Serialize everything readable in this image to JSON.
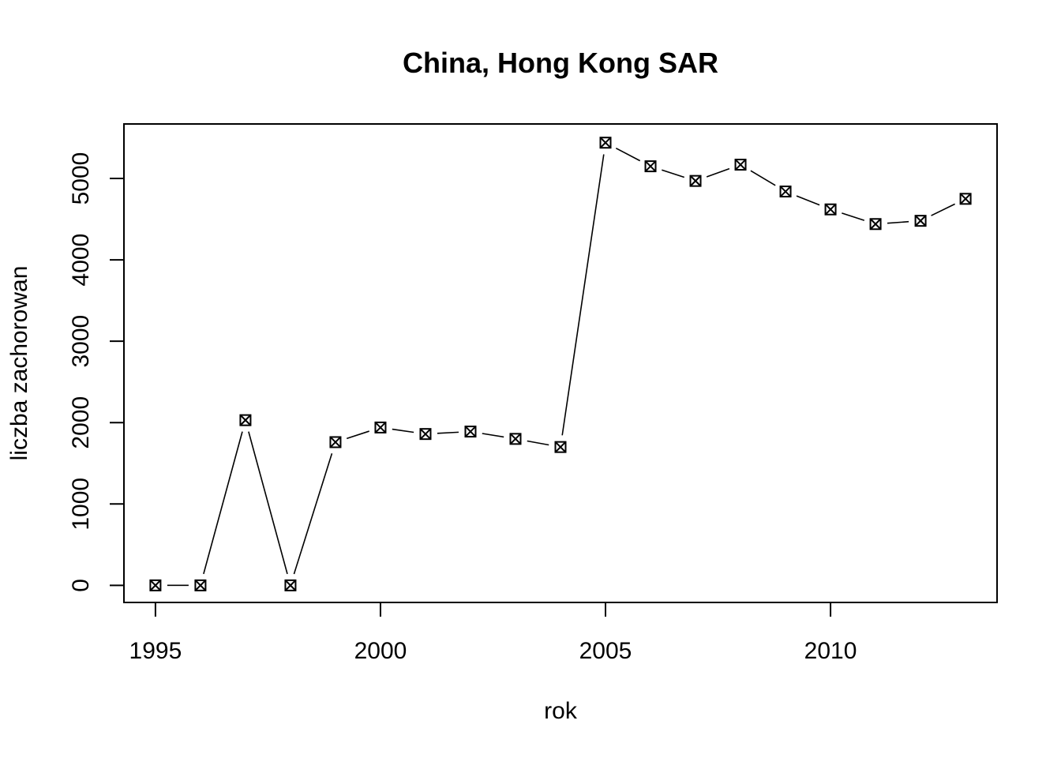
{
  "chart_data": {
    "type": "line",
    "title": "China, Hong Kong SAR",
    "xlabel": "rok",
    "ylabel": "liczba zachorowan",
    "xlim": [
      1994.3,
      2013.7
    ],
    "ylim": [
      -210,
      5670
    ],
    "x_ticks": [
      1995,
      2000,
      2005,
      2010
    ],
    "y_ticks": [
      0,
      1000,
      2000,
      3000,
      4000,
      5000
    ],
    "grid": false,
    "line_style": "segments between points, gaps at markers",
    "marker": "boxed-x",
    "series": [
      {
        "x": [
          1995,
          1996,
          1997,
          1998,
          1999,
          2000,
          2001,
          2002,
          2003,
          2004,
          2005,
          2006,
          2007,
          2008,
          2009,
          2010,
          2011,
          2012,
          2013
        ],
        "y": [
          0,
          0,
          2030,
          0,
          1760,
          1940,
          1860,
          1890,
          1800,
          1700,
          5440,
          5150,
          4970,
          5170,
          4840,
          4620,
          4440,
          4480,
          4750
        ]
      }
    ]
  }
}
